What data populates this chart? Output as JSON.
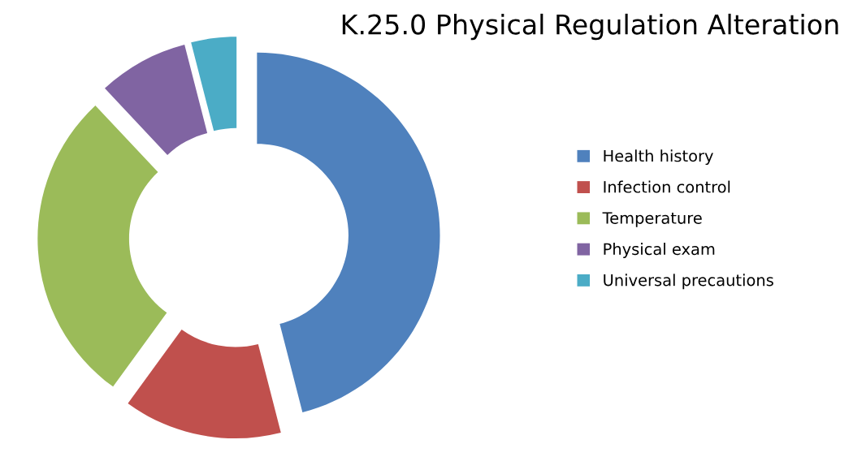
{
  "chart_data": {
    "type": "donut",
    "title": "K.25.0 Physical Regulation Alteration",
    "categories": [
      "Health history",
      "Infection control",
      "Temperature",
      "Physical exam",
      "Universal precautions"
    ],
    "values": [
      46,
      14,
      28,
      8,
      4
    ],
    "colors": [
      "#4f81bd",
      "#c0504d",
      "#9bbb59",
      "#8064a2",
      "#4bacc6"
    ],
    "legend": "right"
  }
}
